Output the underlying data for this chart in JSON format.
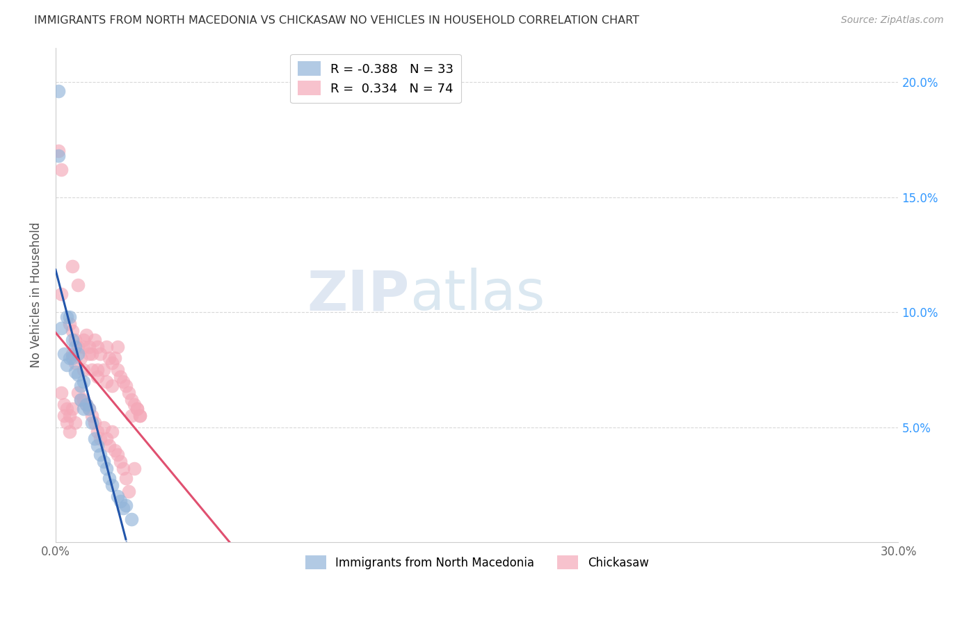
{
  "title": "IMMIGRANTS FROM NORTH MACEDONIA VS CHICKASAW NO VEHICLES IN HOUSEHOLD CORRELATION CHART",
  "source": "Source: ZipAtlas.com",
  "ylabel": "No Vehicles in Household",
  "xlim": [
    0.0,
    0.3
  ],
  "ylim": [
    0.0,
    0.215
  ],
  "yticks": [
    0.05,
    0.1,
    0.15,
    0.2
  ],
  "yticklabels_right": [
    "5.0%",
    "10.0%",
    "15.0%",
    "20.0%"
  ],
  "xticks": [
    0.0,
    0.05,
    0.1,
    0.15,
    0.2,
    0.25,
    0.3
  ],
  "xticklabels": [
    "0.0%",
    "",
    "",
    "",
    "",
    "",
    "30.0%"
  ],
  "grid_color": "#d8d8d8",
  "background_color": "#ffffff",
  "legend_label1": "Immigrants from North Macedonia",
  "legend_label2": "Chickasaw",
  "blue_color": "#92b4d9",
  "pink_color": "#f4a8b8",
  "blue_line_color": "#2255aa",
  "pink_line_color": "#e05070",
  "blue_x": [
    0.001,
    0.001,
    0.002,
    0.003,
    0.004,
    0.004,
    0.005,
    0.005,
    0.006,
    0.006,
    0.007,
    0.007,
    0.008,
    0.008,
    0.009,
    0.009,
    0.01,
    0.01,
    0.011,
    0.012,
    0.013,
    0.014,
    0.015,
    0.016,
    0.017,
    0.018,
    0.019,
    0.02,
    0.022,
    0.023,
    0.024,
    0.025,
    0.027
  ],
  "blue_y": [
    0.196,
    0.168,
    0.093,
    0.082,
    0.077,
    0.098,
    0.098,
    0.08,
    0.088,
    0.08,
    0.085,
    0.074,
    0.082,
    0.073,
    0.068,
    0.062,
    0.07,
    0.058,
    0.06,
    0.058,
    0.052,
    0.045,
    0.042,
    0.038,
    0.035,
    0.032,
    0.028,
    0.025,
    0.02,
    0.018,
    0.015,
    0.016,
    0.01
  ],
  "pink_x": [
    0.002,
    0.005,
    0.006,
    0.006,
    0.007,
    0.007,
    0.008,
    0.009,
    0.01,
    0.01,
    0.011,
    0.012,
    0.013,
    0.013,
    0.014,
    0.015,
    0.015,
    0.016,
    0.017,
    0.018,
    0.019,
    0.02,
    0.021,
    0.022,
    0.023,
    0.024,
    0.025,
    0.026,
    0.027,
    0.028,
    0.029,
    0.03,
    0.006,
    0.008,
    0.01,
    0.012,
    0.015,
    0.018,
    0.02,
    0.022,
    0.002,
    0.003,
    0.004,
    0.005,
    0.006,
    0.007,
    0.008,
    0.009,
    0.01,
    0.011,
    0.012,
    0.013,
    0.014,
    0.015,
    0.016,
    0.017,
    0.018,
    0.019,
    0.02,
    0.021,
    0.022,
    0.023,
    0.024,
    0.025,
    0.026,
    0.027,
    0.028,
    0.029,
    0.03,
    0.001,
    0.002,
    0.003,
    0.004,
    0.005
  ],
  "pink_y": [
    0.108,
    0.095,
    0.092,
    0.082,
    0.088,
    0.078,
    0.085,
    0.08,
    0.085,
    0.075,
    0.09,
    0.082,
    0.082,
    0.075,
    0.088,
    0.085,
    0.075,
    0.082,
    0.075,
    0.085,
    0.08,
    0.078,
    0.08,
    0.075,
    0.072,
    0.07,
    0.068,
    0.065,
    0.062,
    0.06,
    0.058,
    0.055,
    0.12,
    0.112,
    0.088,
    0.085,
    0.072,
    0.07,
    0.068,
    0.085,
    0.065,
    0.06,
    0.058,
    0.055,
    0.058,
    0.052,
    0.065,
    0.062,
    0.062,
    0.06,
    0.058,
    0.055,
    0.052,
    0.048,
    0.045,
    0.05,
    0.045,
    0.042,
    0.048,
    0.04,
    0.038,
    0.035,
    0.032,
    0.028,
    0.022,
    0.055,
    0.032,
    0.058,
    0.055,
    0.17,
    0.162,
    0.055,
    0.052,
    0.048
  ]
}
